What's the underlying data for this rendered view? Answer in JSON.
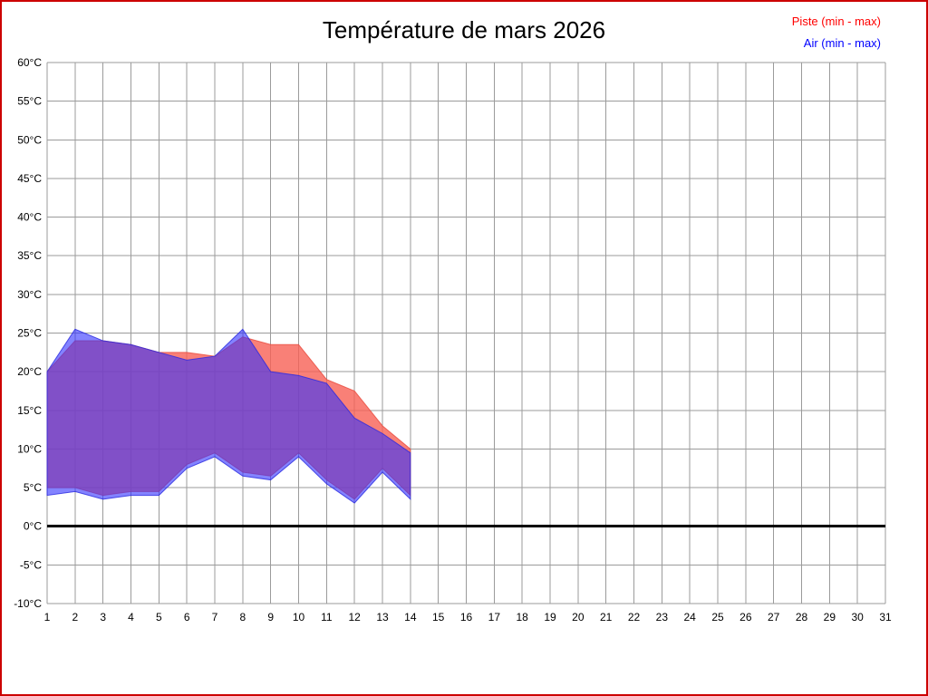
{
  "page": {
    "border_color": "#cc0000",
    "background": "#ffffff"
  },
  "chart_data": {
    "type": "area",
    "title": "Température de mars 2026",
    "x_axis": {
      "min": 1,
      "max": 31,
      "step": 1,
      "tick_labels": [
        1,
        2,
        3,
        4,
        5,
        6,
        7,
        8,
        9,
        10,
        11,
        12,
        13,
        14,
        15,
        16,
        17,
        18,
        19,
        20,
        21,
        22,
        23,
        24,
        25,
        26,
        27,
        28,
        29,
        30,
        31
      ]
    },
    "y_axis": {
      "min": -10,
      "max": 60,
      "step": 5,
      "unit": "°C",
      "tick_labels": [
        "60°C",
        "55°C",
        "50°C",
        "45°C",
        "40°C",
        "35°C",
        "30°C",
        "25°C",
        "20°C",
        "15°C",
        "10°C",
        "5°C",
        "0°C",
        "-5°C",
        "-10°C"
      ]
    },
    "grid": true,
    "grid_color": "#9b9b9b",
    "zero_line_value": 0,
    "zero_line_color": "#000000",
    "legend_position": "top-right",
    "days": [
      1,
      2,
      3,
      4,
      5,
      6,
      7,
      8,
      9,
      10,
      11,
      12,
      13,
      14
    ],
    "series": [
      {
        "name": "Piste (min - max)",
        "legend_color": "#ff0000",
        "fill": "#f76055",
        "fill_opacity": 0.8,
        "edge": "#e84a3c",
        "max": [
          20,
          24,
          24,
          23.5,
          22.5,
          22.5,
          22,
          24.5,
          23.5,
          23.5,
          19,
          17.5,
          13,
          10
        ],
        "min": [
          5,
          5,
          4,
          4.5,
          4.5,
          8,
          9.5,
          7,
          6.5,
          9.5,
          6,
          3.5,
          7.5,
          4
        ]
      },
      {
        "name": "Air (min - max)",
        "legend_color": "#0000ff",
        "fill": "#3030ff",
        "fill_opacity": 0.6,
        "edge": "#2828e0",
        "max": [
          20,
          25.5,
          24,
          23.5,
          22.5,
          21.5,
          22,
          25.5,
          20,
          19.5,
          18.5,
          14,
          12,
          9.5
        ],
        "min": [
          4,
          4.5,
          3.5,
          4,
          4,
          7.5,
          9,
          6.5,
          6,
          9,
          5.5,
          3,
          7,
          3.5
        ]
      }
    ]
  }
}
